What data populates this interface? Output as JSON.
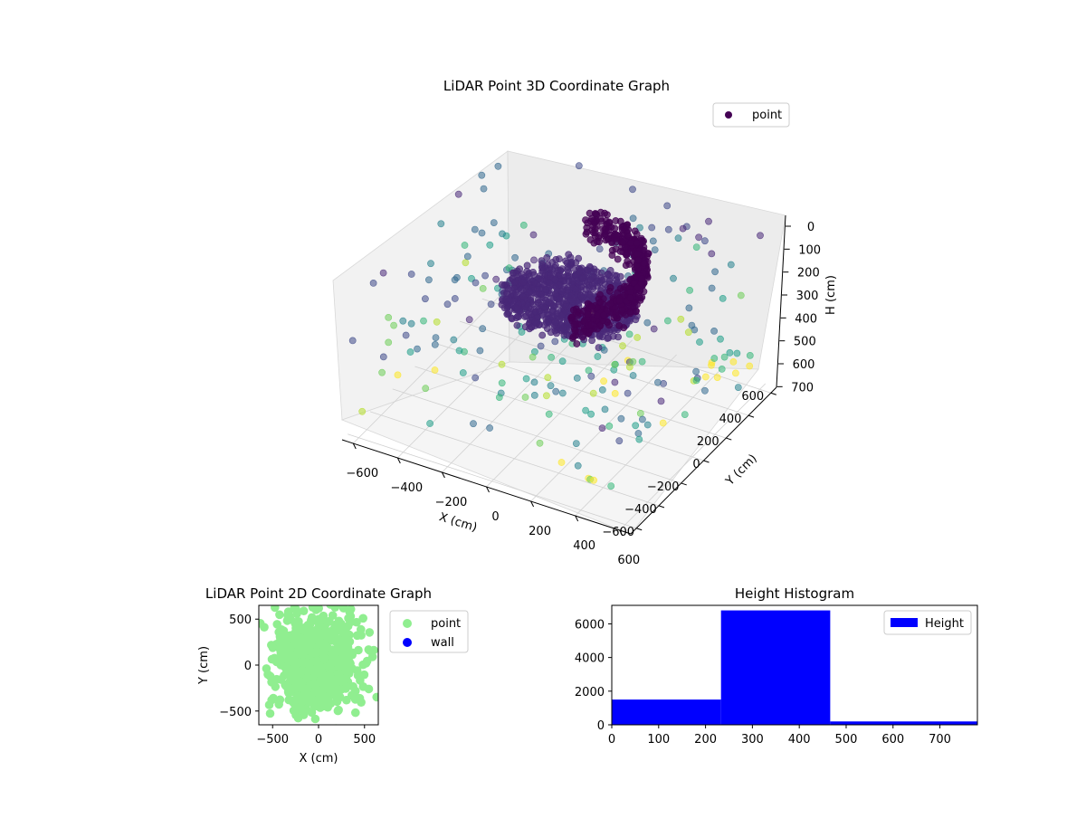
{
  "colors": {
    "point_3d_legend": "#440154",
    "point_2d": "#90ee90",
    "wall": "#0000ff",
    "histogram": "#0000ff"
  },
  "chart_data": [
    {
      "id": "chart3d",
      "type": "scatter",
      "title": "LiDAR Point 3D Coordinate Graph",
      "xlabel": "X (cm)",
      "ylabel": "Y (cm)",
      "zlabel": "H (cm)",
      "xticks": [
        -600,
        -400,
        -200,
        0,
        200,
        400,
        600
      ],
      "yticks": [
        -600,
        -400,
        -200,
        0,
        200,
        400,
        600
      ],
      "zticks": [
        0,
        100,
        200,
        300,
        400,
        500,
        600,
        700
      ],
      "xlim": [
        -650,
        650
      ],
      "ylim": [
        -650,
        650
      ],
      "zlim": [
        750,
        0
      ],
      "legend": {
        "placement": "upper-right",
        "entries": [
          "point"
        ]
      },
      "grid": true,
      "colormap": "viridis (by H)",
      "series": [
        {
          "name": "point",
          "description_of_distribution": ""
        }
      ]
    },
    {
      "id": "chart2d",
      "type": "scatter",
      "title": "LiDAR Point 2D Coordinate Graph",
      "xlabel": "X (cm)",
      "ylabel": "Y (cm)",
      "xticks": [
        -500,
        0,
        500
      ],
      "yticks": [
        500,
        0,
        -500
      ],
      "xlim": [
        -650,
        650
      ],
      "ylim": [
        -650,
        650
      ],
      "legend": {
        "placement": "outside-right",
        "entries": [
          "point",
          "wall"
        ]
      },
      "series": [
        {
          "name": "point",
          "color": "#90ee90"
        },
        {
          "name": "wall",
          "color": "#0000ff"
        }
      ]
    },
    {
      "id": "histogram",
      "type": "bar",
      "title": "Height Histogram",
      "xlabel": "",
      "ylabel": "",
      "xticks": [
        0,
        100,
        200,
        300,
        400,
        500,
        600,
        700
      ],
      "yticks": [
        0,
        2000,
        4000,
        6000
      ],
      "xlim": [
        0,
        780
      ],
      "ylim": [
        0,
        7100
      ],
      "bins": [
        {
          "from": 0,
          "to": 233,
          "count": 1500
        },
        {
          "from": 233,
          "to": 466,
          "count": 6800
        },
        {
          "from": 466,
          "to": 780,
          "count": 200
        }
      ],
      "legend": {
        "placement": "upper-right",
        "entries": [
          "Height"
        ]
      },
      "series": [
        {
          "name": "Height"
        }
      ]
    }
  ]
}
